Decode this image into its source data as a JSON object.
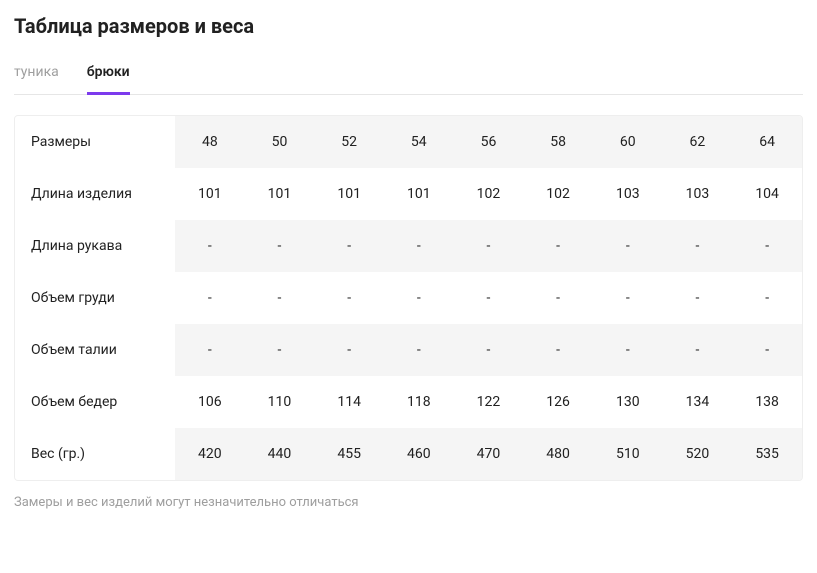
{
  "title": "Таблица размеров и веса",
  "tabs": [
    {
      "label": "туника",
      "active": false
    },
    {
      "label": "брюки",
      "active": true
    }
  ],
  "columns": [
    "48",
    "50",
    "52",
    "54",
    "56",
    "58",
    "60",
    "62",
    "64"
  ],
  "rows": [
    {
      "label": "Размеры",
      "striped": true,
      "values": [
        "48",
        "50",
        "52",
        "54",
        "56",
        "58",
        "60",
        "62",
        "64"
      ]
    },
    {
      "label": "Длина изделия",
      "striped": false,
      "values": [
        "101",
        "101",
        "101",
        "101",
        "102",
        "102",
        "103",
        "103",
        "104"
      ]
    },
    {
      "label": "Длина рукава",
      "striped": true,
      "values": [
        "-",
        "-",
        "-",
        "-",
        "-",
        "-",
        "-",
        "-",
        "-"
      ]
    },
    {
      "label": "Объем груди",
      "striped": false,
      "values": [
        "-",
        "-",
        "-",
        "-",
        "-",
        "-",
        "-",
        "-",
        "-"
      ]
    },
    {
      "label": "Объем талии",
      "striped": true,
      "values": [
        "-",
        "-",
        "-",
        "-",
        "-",
        "-",
        "-",
        "-",
        "-"
      ]
    },
    {
      "label": "Объем бедер",
      "striped": false,
      "values": [
        "106",
        "110",
        "114",
        "118",
        "122",
        "126",
        "130",
        "134",
        "138"
      ]
    },
    {
      "label": "Вес (гр.)",
      "striped": true,
      "values": [
        "420",
        "440",
        "455",
        "460",
        "470",
        "480",
        "510",
        "520",
        "535"
      ]
    }
  ],
  "footnote": "Замеры и вес изделий могут незначительно отличаться",
  "colors": {
    "accent": "#7c3aed",
    "border": "#e6e6e6",
    "stripe": "#f5f5f5",
    "text_muted": "#9e9e9e",
    "text": "#212121",
    "bg": "#ffffff"
  }
}
